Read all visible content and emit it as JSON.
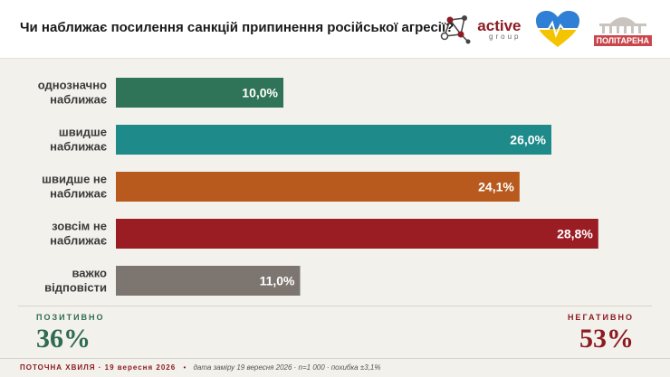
{
  "header": {
    "title": "Чи наближає посилення санкцій припинення російської агресії?",
    "logo_active_name": "active",
    "logo_active_sub": "group",
    "logo_politarena": "ПОЛІТАРЕНА"
  },
  "chart_data": {
    "type": "bar",
    "orientation": "horizontal",
    "categories": [
      [
        "однозначно",
        "наближає"
      ],
      [
        "швидше",
        "наближає"
      ],
      [
        "швидше не",
        "наближає"
      ],
      [
        "зовсім не",
        "наближає"
      ],
      [
        "важко",
        "відповісти"
      ]
    ],
    "values": [
      10.0,
      26.0,
      24.1,
      28.8,
      11.0
    ],
    "value_labels": [
      "10,0%",
      "26,0%",
      "24,1%",
      "28,8%",
      "11,0%"
    ],
    "colors": [
      "#2f7358",
      "#1f8a8a",
      "#b85a1e",
      "#9b1d24",
      "#7d7670"
    ],
    "xlim": [
      0,
      32
    ]
  },
  "summary": {
    "positive_label": "ПОЗИТИВНО",
    "positive_value": "36%",
    "negative_label": "НЕГАТИВНО",
    "negative_value": "53%"
  },
  "footer": {
    "wave": "ПОТОЧНА ХВИЛЯ · 19 вересня 2026",
    "separator": "•",
    "meta": "дата заміру 19 вересня 2026 · n=1 000 · похибка ±3,1%"
  }
}
